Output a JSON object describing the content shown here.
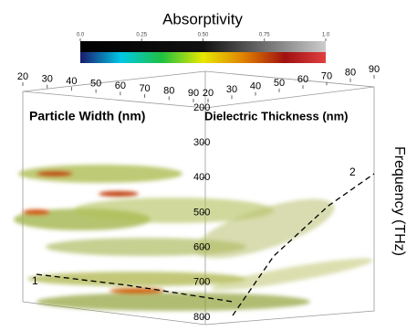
{
  "chart_data": {
    "type": "volume",
    "colorbar": {
      "title": "Absorptivity",
      "lim": [
        0,
        1
      ],
      "ticks": [
        {
          "value": 0,
          "label": "0.0"
        },
        {
          "value": 0.25,
          "label": "0.25"
        },
        {
          "value": 0.5,
          "label": "0.50"
        },
        {
          "value": 0.75,
          "label": "0.75"
        },
        {
          "value": 1,
          "label": "1.0"
        }
      ],
      "colors": [
        "#1a1a6e",
        "#00c8e6",
        "#20c040",
        "#e8e800",
        "#e08000",
        "#a01010",
        "#e04040"
      ]
    },
    "xlabel": "Particle Width (nm)",
    "xlim": [
      20,
      90
    ],
    "xticks": [
      20,
      30,
      40,
      50,
      60,
      70,
      80,
      90
    ],
    "x2label": "Dielectric Thickness (nm)",
    "x2lim": [
      20,
      90
    ],
    "x2ticks": [
      20,
      30,
      40,
      50,
      60,
      70,
      80,
      90
    ],
    "ylabel": "Frequency (THz)",
    "ylim": [
      200,
      800
    ],
    "yticks": [
      200,
      300,
      400,
      500,
      600,
      700,
      800
    ],
    "annotations": [
      "1",
      "2"
    ]
  }
}
